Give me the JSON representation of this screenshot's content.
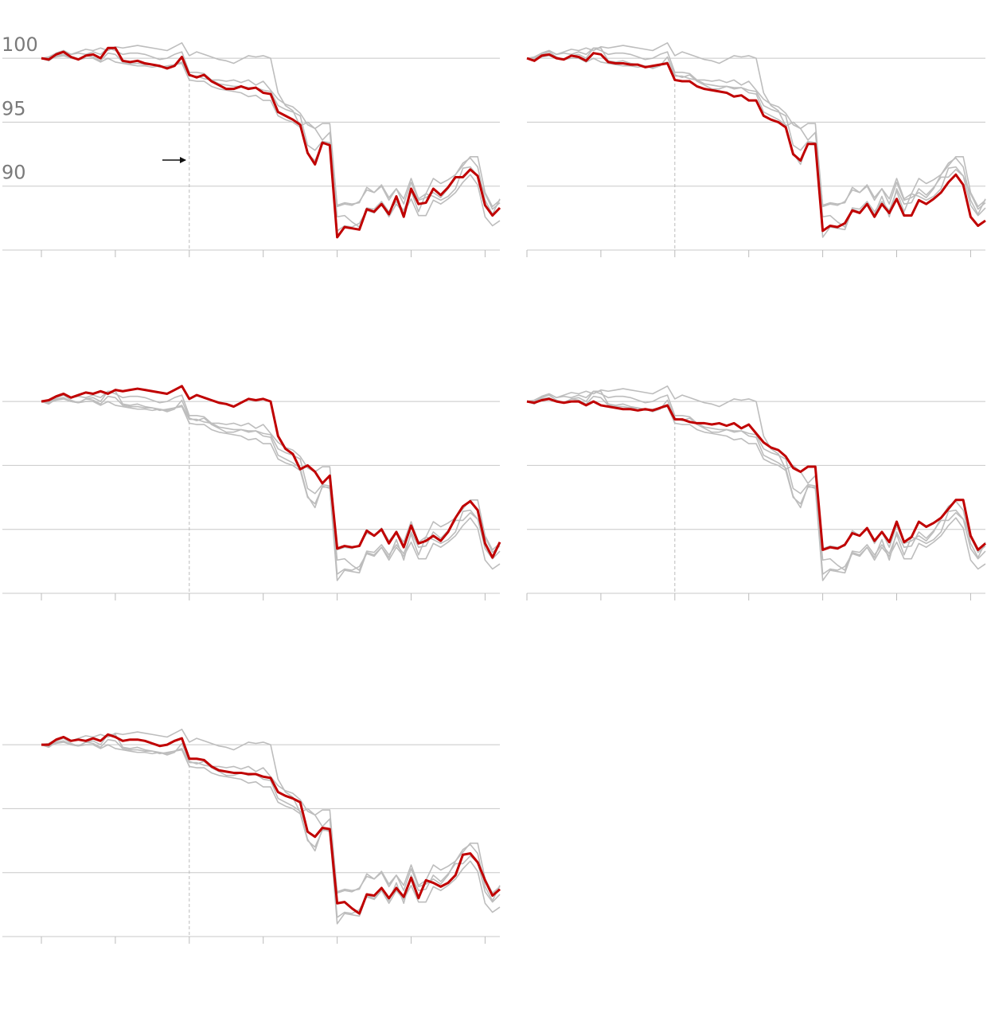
{
  "chart_data": {
    "type": "line",
    "color": "#bdbdbd",
    "highlight_color": "#c00000",
    "grid": true,
    "x": [
      0,
      1,
      2,
      3,
      4,
      5,
      6,
      7,
      8,
      9,
      10,
      11,
      12,
      13,
      14,
      15,
      16,
      17,
      18,
      19,
      20,
      21,
      22,
      23,
      24,
      25,
      26,
      27,
      28,
      29,
      30,
      31,
      32,
      33,
      34,
      35,
      36,
      37,
      38,
      39,
      40,
      41,
      42,
      43,
      44,
      45,
      46,
      47,
      48,
      49,
      50,
      51,
      52,
      53,
      54,
      55,
      56,
      57,
      58,
      59,
      60,
      61,
      62
    ],
    "xlim": [
      0,
      62
    ],
    "xticks": [
      0,
      10,
      20,
      30,
      40,
      50,
      60
    ],
    "reference_x": 20,
    "ylim": [
      85,
      102
    ],
    "yticks": [
      90,
      95,
      100
    ],
    "series": [
      {
        "values": [
          100.0,
          99.9,
          100.3,
          100.5,
          100.1,
          99.9,
          100.2,
          100.3,
          100.0,
          100.8,
          100.8,
          99.8,
          99.7,
          99.8,
          99.6,
          99.5,
          99.4,
          99.2,
          99.4,
          100.1,
          98.7,
          98.5,
          98.7,
          98.2,
          97.9,
          97.6,
          97.6,
          97.8,
          97.6,
          97.7,
          97.3,
          97.2,
          95.8,
          95.5,
          95.2,
          94.8,
          92.6,
          91.7,
          93.4,
          93.2,
          86.0,
          86.8,
          86.7,
          86.6,
          88.2,
          88.0,
          88.6,
          87.8,
          89.2,
          87.6,
          89.8,
          88.6,
          88.7,
          89.8,
          89.3,
          89.9,
          90.7,
          90.7,
          91.3,
          90.8,
          88.5,
          87.7,
          88.3
        ]
      },
      {
        "values": [
          100.0,
          99.8,
          100.2,
          100.3,
          100.0,
          99.9,
          100.2,
          100.1,
          99.8,
          100.4,
          100.3,
          99.7,
          99.6,
          99.6,
          99.5,
          99.5,
          99.3,
          99.4,
          99.5,
          99.6,
          98.3,
          98.2,
          98.2,
          97.8,
          97.6,
          97.5,
          97.4,
          97.3,
          97.0,
          97.1,
          96.7,
          96.7,
          95.5,
          95.2,
          95.0,
          94.6,
          92.5,
          92.0,
          93.3,
          93.3,
          86.5,
          86.9,
          86.8,
          87.1,
          88.1,
          87.9,
          88.6,
          87.6,
          88.6,
          87.9,
          89.0,
          87.7,
          87.7,
          88.9,
          88.6,
          89.0,
          89.5,
          90.3,
          90.9,
          90.1,
          87.6,
          86.9,
          87.3
        ]
      },
      {
        "values": [
          100.0,
          100.1,
          100.4,
          100.6,
          100.3,
          100.5,
          100.7,
          100.6,
          100.8,
          100.6,
          100.9,
          100.8,
          100.9,
          101.0,
          100.9,
          100.8,
          100.7,
          100.6,
          100.9,
          101.2,
          100.2,
          100.5,
          100.3,
          100.1,
          99.9,
          99.8,
          99.6,
          99.9,
          100.2,
          100.1,
          100.2,
          100.0,
          97.3,
          96.3,
          95.9,
          94.7,
          95.0,
          94.5,
          93.6,
          94.2,
          88.5,
          88.7,
          88.6,
          88.7,
          89.9,
          89.5,
          90.0,
          88.9,
          89.8,
          88.6,
          90.3,
          88.9,
          89.1,
          89.5,
          89.1,
          89.8,
          90.9,
          91.8,
          92.2,
          91.5,
          88.9,
          87.8,
          89.0
        ]
      },
      {
        "values": [
          100.0,
          99.9,
          100.1,
          100.2,
          100.0,
          99.9,
          100.0,
          100.0,
          99.7,
          100.0,
          99.7,
          99.6,
          99.5,
          99.4,
          99.4,
          99.3,
          99.4,
          99.3,
          99.5,
          99.7,
          98.6,
          98.6,
          98.4,
          98.3,
          98.3,
          98.2,
          98.3,
          98.1,
          98.3,
          97.9,
          98.2,
          97.5,
          96.8,
          96.4,
          96.2,
          95.7,
          94.8,
          94.5,
          94.9,
          94.9,
          88.4,
          88.6,
          88.5,
          88.8,
          89.7,
          89.5,
          90.1,
          89.1,
          89.8,
          89.0,
          90.6,
          89.0,
          89.4,
          90.6,
          90.2,
          90.5,
          90.9,
          91.6,
          92.3,
          92.3,
          89.5,
          88.4,
          88.9
        ]
      },
      {
        "values": [
          100.0,
          100.0,
          100.4,
          100.6,
          100.3,
          100.4,
          100.3,
          100.5,
          100.3,
          100.8,
          100.6,
          100.3,
          100.4,
          100.4,
          100.3,
          100.1,
          99.9,
          100.0,
          100.3,
          100.5,
          98.9,
          98.9,
          98.8,
          98.3,
          98.0,
          97.9,
          97.8,
          97.8,
          97.7,
          97.7,
          97.5,
          97.4,
          96.3,
          96.0,
          95.8,
          95.5,
          93.2,
          92.8,
          93.5,
          93.4,
          87.6,
          87.7,
          87.2,
          86.8,
          88.3,
          88.2,
          88.8,
          88.0,
          88.8,
          88.1,
          89.6,
          88.0,
          89.4,
          89.2,
          88.9,
          89.2,
          89.8,
          91.4,
          91.5,
          90.8,
          89.4,
          88.2,
          88.7
        ]
      }
    ]
  }
}
